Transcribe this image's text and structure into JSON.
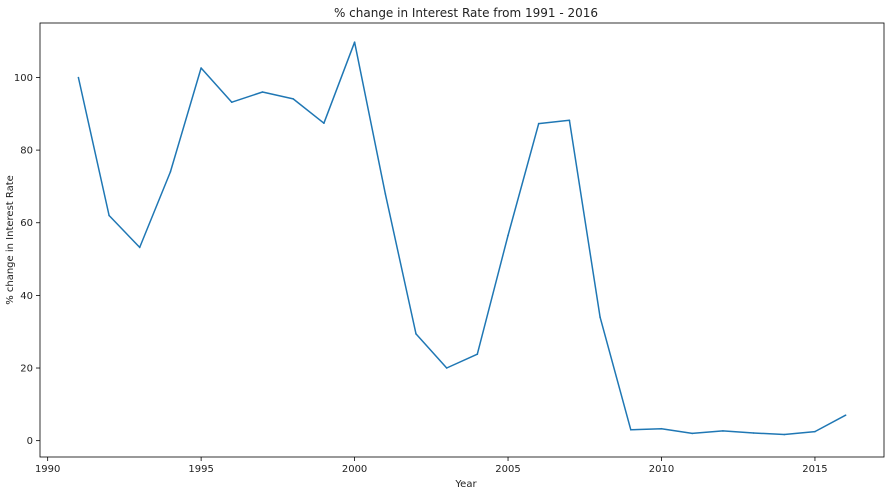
{
  "chart_data": {
    "type": "line",
    "title": "% change in Interest Rate from 1991 - 2016",
    "xlabel": "Year",
    "ylabel": "% change in Interest Rate",
    "xlim": [
      1989.75,
      2017.25
    ],
    "ylim": [
      -4.5,
      115
    ],
    "xticks": [
      1990,
      1995,
      2000,
      2005,
      2010,
      2015
    ],
    "yticks": [
      0,
      20,
      40,
      60,
      80,
      100
    ],
    "grid": false,
    "line_color": "#1f77b4",
    "series": [
      {
        "x": [
          1991,
          1992,
          1993,
          1994,
          1995,
          1996,
          1997,
          1998,
          1999,
          2000,
          2001,
          2002,
          2003,
          2004,
          2005,
          2006,
          2007,
          2008,
          2009,
          2010,
          2011,
          2012,
          2013,
          2014,
          2015,
          2016
        ],
        "y": [
          100,
          62,
          53.2,
          74,
          102.6,
          93.2,
          96,
          94.1,
          87.4,
          109.7,
          68,
          29.4,
          20,
          23.8,
          56.5,
          87.3,
          88.2,
          34,
          3,
          3.3,
          2,
          2.7,
          2.1,
          1.7,
          2.5,
          7
        ]
      }
    ]
  }
}
